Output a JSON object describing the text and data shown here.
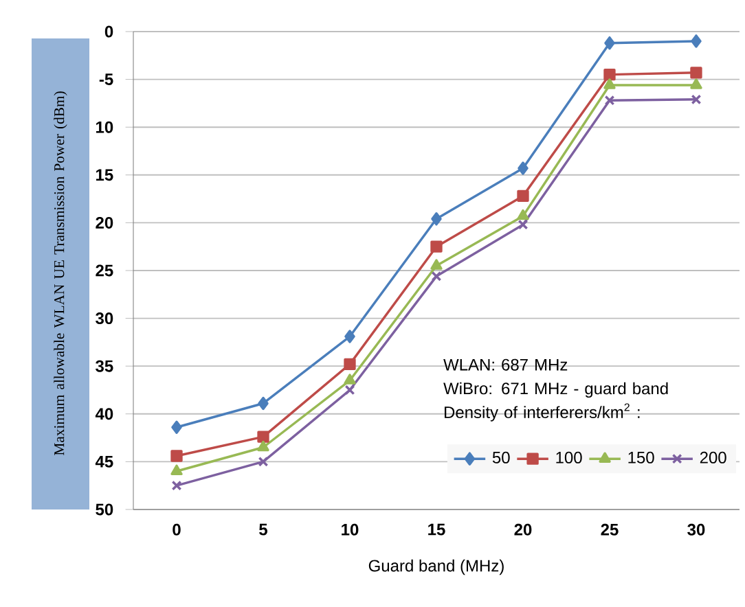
{
  "chart_data": {
    "type": "line",
    "xlabel": "Guard band (MHz)",
    "ylabel": "Maximum allowable WLAN UE Transmission Power (dBm)",
    "annotations": [
      "WLAN: 687 MHz",
      "WiBro: 671 MHz - guard band"
    ],
    "legend_title": "Density of interferers/km$^{2}$ :",
    "categories": [
      "0",
      "5",
      "10",
      "15",
      "20",
      "25",
      "30"
    ],
    "ylim": [
      -50,
      0
    ],
    "yticks": [
      0,
      -5,
      {
        "value": -10,
        "label": "10"
      },
      {
        "value": -15,
        "label": "15"
      },
      {
        "value": -20,
        "label": "20"
      },
      {
        "value": -25,
        "label": "25"
      },
      {
        "value": -30,
        "label": "30"
      },
      {
        "value": -35,
        "label": "35"
      },
      {
        "value": -40,
        "label": "40"
      },
      {
        "value": -45,
        "label": "45"
      },
      {
        "value": -50,
        "label": "50"
      }
    ],
    "grid": "y",
    "legend": "bottom right",
    "line_style": "solid",
    "series": [
      {
        "name": "50",
        "color": "#4a7ebb",
        "marker": "diamond",
        "values": [
          -41.4,
          -38.9,
          -31.9,
          -19.6,
          -14.3,
          -1.2,
          -1.0
        ]
      },
      {
        "name": "100",
        "color": "#be4b48",
        "marker": "square",
        "values": [
          -44.4,
          -42.4,
          -34.8,
          -22.5,
          -17.2,
          -4.5,
          -4.3
        ]
      },
      {
        "name": "150",
        "color": "#98b954",
        "marker": "triangle",
        "values": [
          -46.0,
          -43.5,
          -36.5,
          -24.5,
          -19.3,
          -5.6,
          -5.6
        ]
      },
      {
        "name": "200",
        "color": "#7d60a0",
        "marker": "cross",
        "values": [
          -47.5,
          -45.0,
          -37.5,
          -25.6,
          -20.2,
          -7.2,
          -7.1
        ]
      }
    ]
  }
}
